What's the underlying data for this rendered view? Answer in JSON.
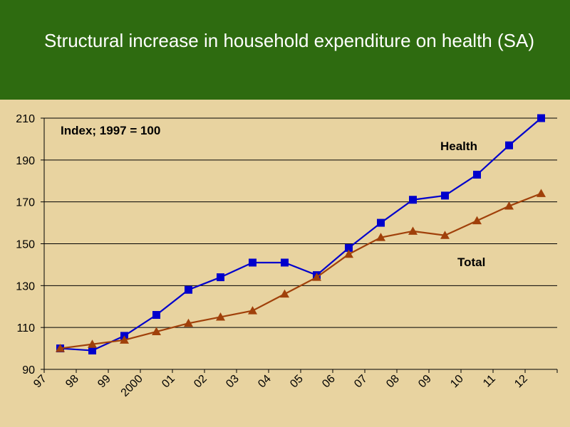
{
  "slide": {
    "title": "Structural increase in household expenditure on health (SA)"
  },
  "chart_data": {
    "type": "line",
    "title": "Structural increase in household expenditure on health (SA)",
    "annotation": "Index; 1997 = 100",
    "categories": [
      "97",
      "98",
      "99",
      "2000",
      "01",
      "02",
      "03",
      "04",
      "05",
      "06",
      "07",
      "08",
      "09",
      "10",
      "11",
      "12"
    ],
    "ylim": [
      90,
      210
    ],
    "yticks": [
      90,
      110,
      130,
      150,
      170,
      190,
      210
    ],
    "grid": true,
    "series": [
      {
        "name": "Health",
        "color": "#0000CC",
        "marker": "square",
        "values": [
          100,
          99,
          106,
          116,
          128,
          134,
          141,
          141,
          135,
          148,
          160,
          171,
          173,
          183,
          197,
          210
        ]
      },
      {
        "name": "Total",
        "color": "#A0400A",
        "marker": "triangle",
        "values": [
          100,
          102,
          104,
          108,
          112,
          115,
          118,
          126,
          134,
          145,
          153,
          156,
          154,
          161,
          168,
          174
        ]
      }
    ]
  }
}
